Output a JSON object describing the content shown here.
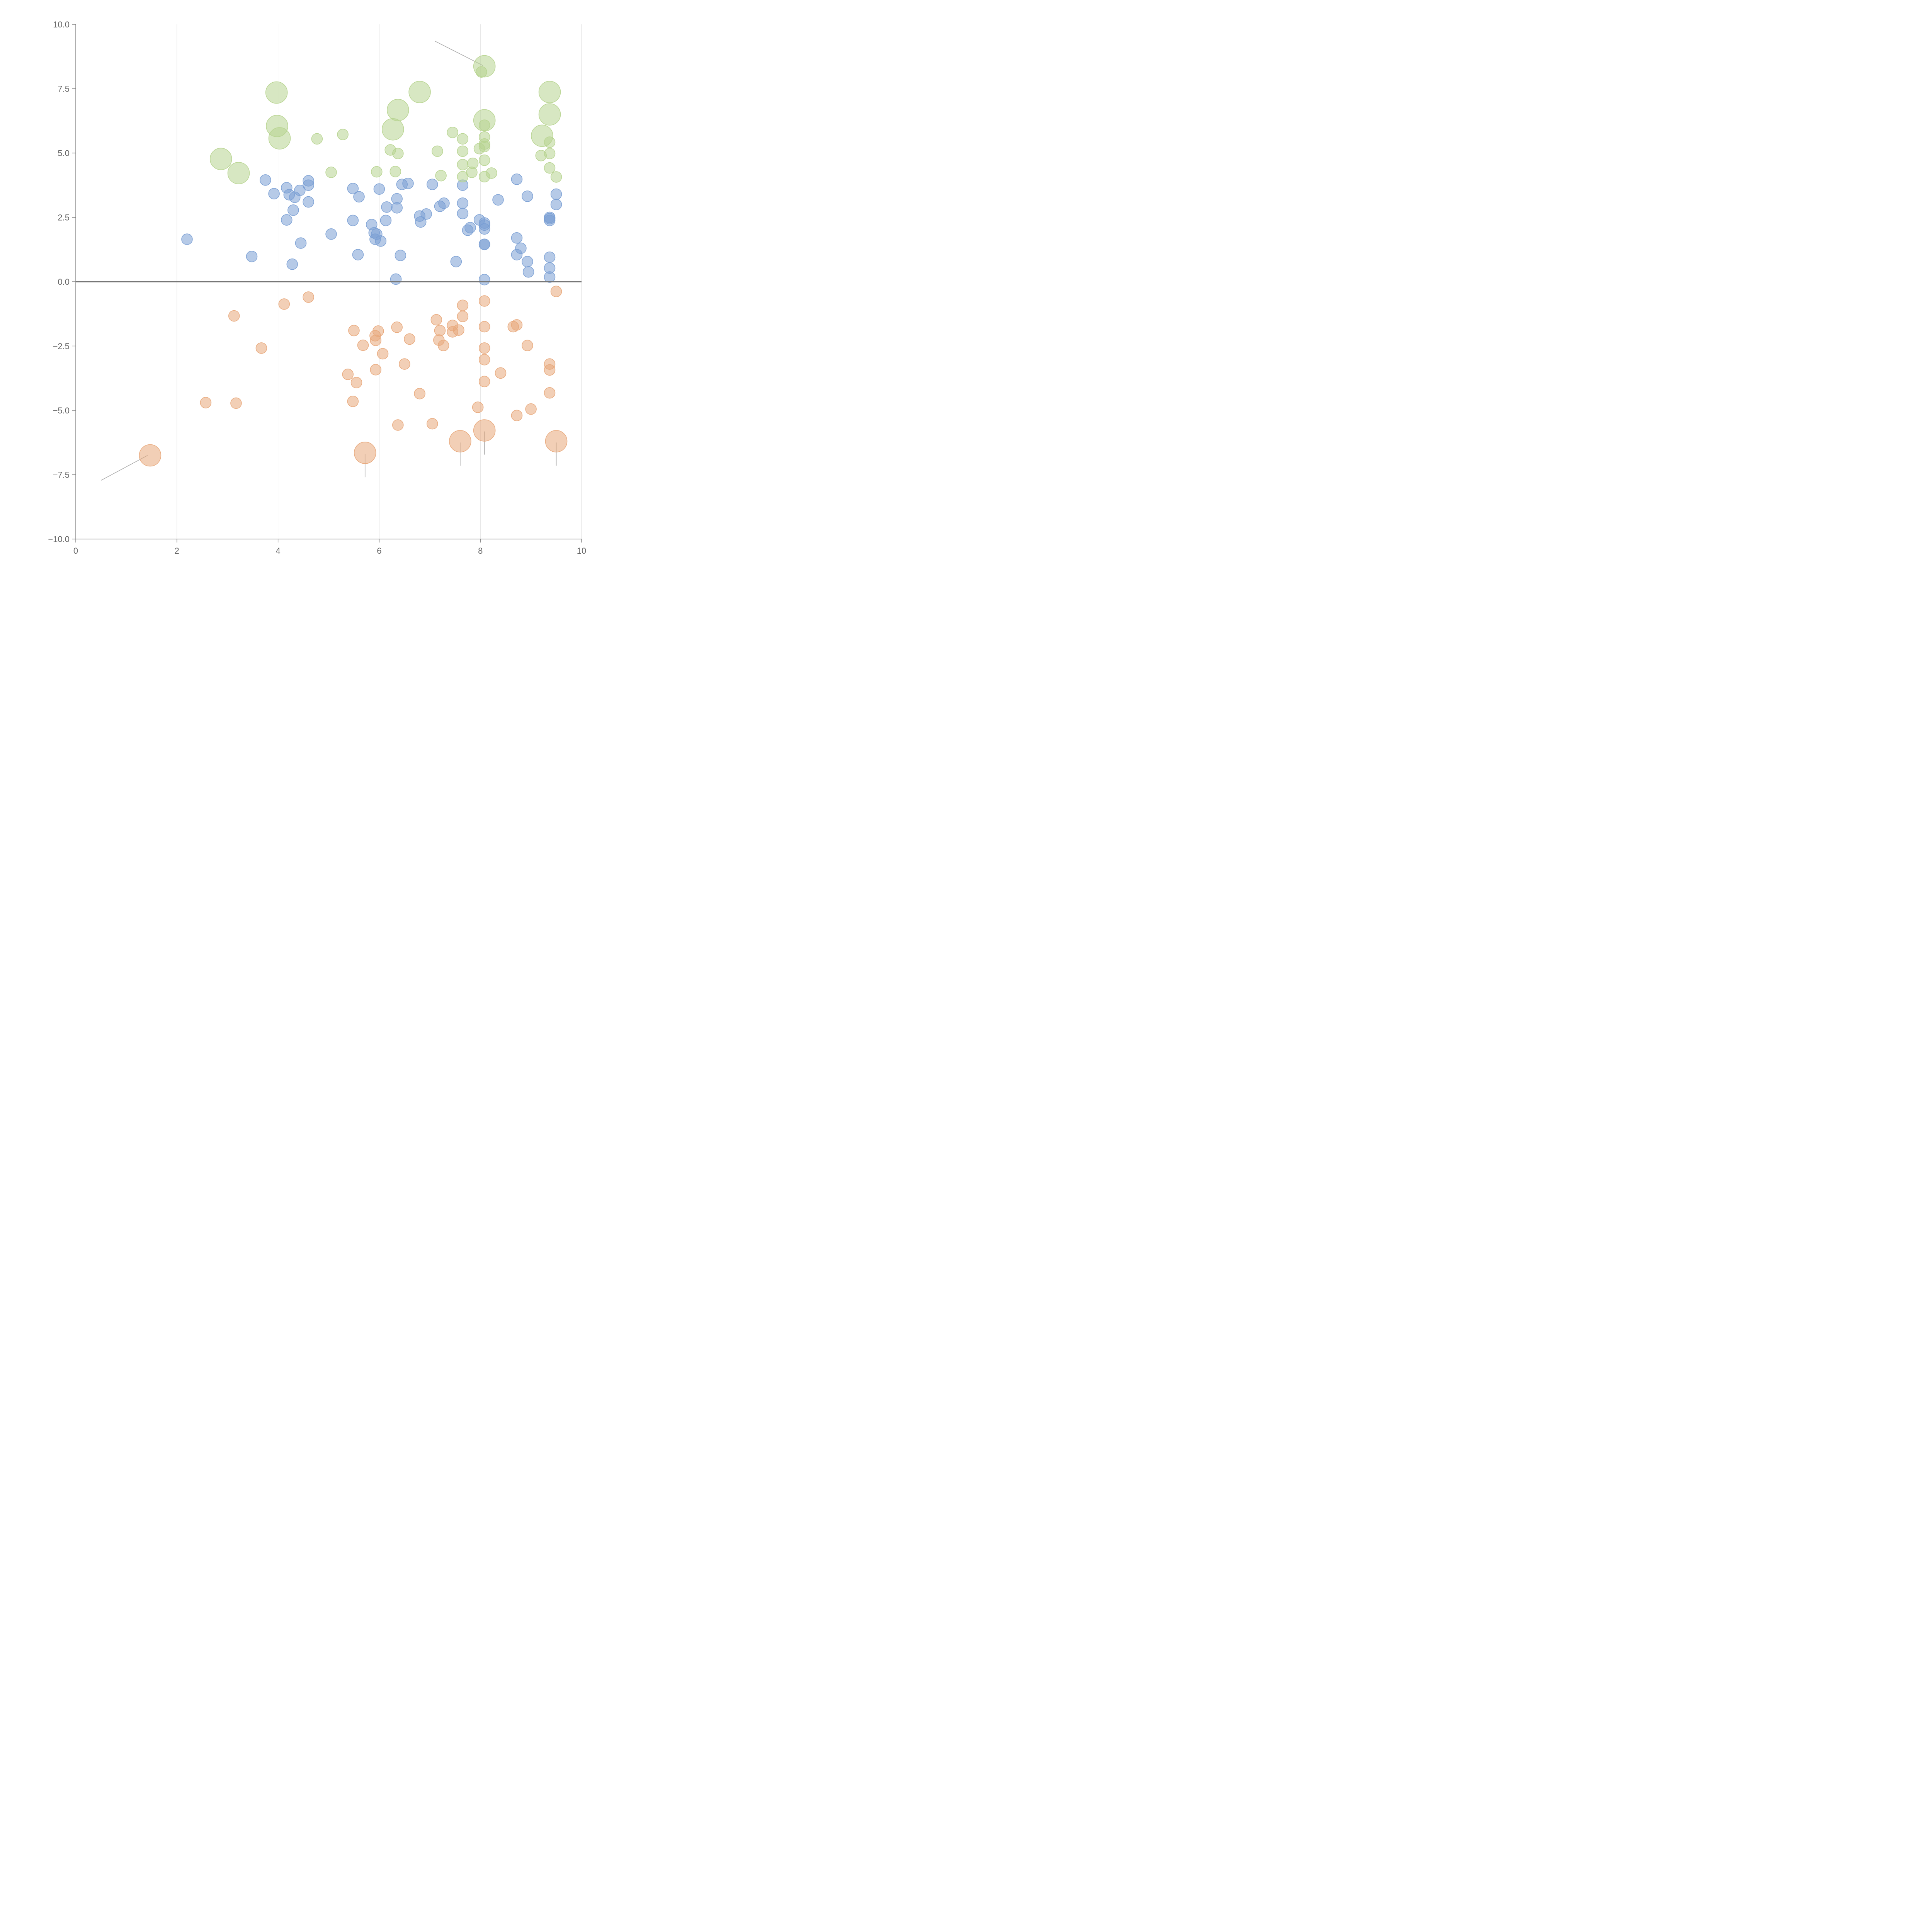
{
  "chart_data": {
    "type": "scatter",
    "title": "",
    "xlabel": "",
    "ylabel": "",
    "xlim": [
      0,
      10
    ],
    "ylim": [
      -10,
      10
    ],
    "grid": "vertical",
    "legend": "none",
    "x_ticks": [
      0,
      2,
      4,
      6,
      8,
      10
    ],
    "x_tick_labels": [
      "0",
      "2",
      "4",
      "6",
      "8",
      "10"
    ],
    "y_ticks": [
      10,
      7.5,
      5,
      2.5,
      0,
      -2.5,
      -5,
      -7.5,
      -10
    ],
    "y_tick_labels": [
      "10.0",
      "7.5",
      "5.0",
      "2.5",
      "0.0",
      "−2.5",
      "−5.0",
      "−7.5",
      "−10.0"
    ],
    "series": [
      {
        "name": "blue",
        "color": "#7a9fd4",
        "points": [
          [
            2.2,
            1.65
          ],
          [
            3.48,
            0.98
          ],
          [
            3.75,
            3.95
          ],
          [
            3.92,
            3.42
          ],
          [
            4.17,
            3.65
          ],
          [
            4.22,
            3.38
          ],
          [
            4.17,
            2.4
          ],
          [
            4.3,
            2.78
          ],
          [
            4.33,
            3.28
          ],
          [
            4.43,
            3.55
          ],
          [
            4.6,
            3.92
          ],
          [
            4.6,
            3.75
          ],
          [
            4.6,
            3.1
          ],
          [
            4.45,
            1.5
          ],
          [
            4.28,
            0.68
          ],
          [
            5.05,
            1.85
          ],
          [
            5.48,
            3.62
          ],
          [
            5.6,
            3.3
          ],
          [
            5.48,
            2.38
          ],
          [
            5.58,
            1.05
          ],
          [
            5.85,
            2.22
          ],
          [
            5.9,
            1.9
          ],
          [
            5.95,
            1.85
          ],
          [
            5.92,
            1.65
          ],
          [
            6.03,
            1.58
          ],
          [
            6.0,
            3.6
          ],
          [
            6.15,
            2.9
          ],
          [
            6.13,
            2.38
          ],
          [
            6.35,
            3.22
          ],
          [
            6.35,
            2.87
          ],
          [
            6.45,
            3.78
          ],
          [
            6.57,
            3.82
          ],
          [
            6.42,
            1.02
          ],
          [
            6.33,
            0.1
          ],
          [
            6.8,
            2.55
          ],
          [
            6.82,
            2.32
          ],
          [
            6.93,
            2.63
          ],
          [
            7.05,
            3.78
          ],
          [
            7.2,
            2.93
          ],
          [
            7.28,
            3.05
          ],
          [
            7.52,
            0.78
          ],
          [
            7.65,
            3.75
          ],
          [
            7.65,
            3.05
          ],
          [
            7.65,
            2.65
          ],
          [
            7.75,
            2.0
          ],
          [
            7.8,
            2.1
          ],
          [
            7.98,
            2.4
          ],
          [
            8.08,
            2.28
          ],
          [
            8.08,
            2.2
          ],
          [
            8.08,
            2.05
          ],
          [
            8.08,
            1.45
          ],
          [
            8.08,
            1.45
          ],
          [
            8.08,
            0.08
          ],
          [
            8.35,
            3.18
          ],
          [
            8.72,
            3.98
          ],
          [
            8.72,
            1.7
          ],
          [
            8.72,
            1.05
          ],
          [
            8.8,
            1.3
          ],
          [
            8.93,
            3.32
          ],
          [
            8.93,
            0.78
          ],
          [
            8.95,
            0.38
          ],
          [
            9.37,
            2.5
          ],
          [
            9.37,
            2.45
          ],
          [
            9.37,
            2.38
          ],
          [
            9.37,
            0.95
          ],
          [
            9.37,
            0.53
          ],
          [
            9.37,
            0.18
          ],
          [
            9.5,
            3.4
          ],
          [
            9.5,
            3.0
          ]
        ]
      },
      {
        "name": "orange",
        "color": "#e8a87a",
        "points": [
          [
            1.47,
            -6.75
          ],
          [
            2.57,
            -4.7
          ],
          [
            3.13,
            -1.33
          ],
          [
            3.17,
            -4.72
          ],
          [
            3.67,
            -2.58
          ],
          [
            4.12,
            -0.87
          ],
          [
            4.6,
            -0.6
          ],
          [
            5.38,
            -3.6
          ],
          [
            5.5,
            -1.9
          ],
          [
            5.48,
            -4.65
          ],
          [
            5.55,
            -3.92
          ],
          [
            5.68,
            -2.47
          ],
          [
            5.72,
            -6.65
          ],
          [
            5.92,
            -2.1
          ],
          [
            5.93,
            -2.28
          ],
          [
            5.98,
            -1.92
          ],
          [
            5.93,
            -3.42
          ],
          [
            6.07,
            -2.8
          ],
          [
            6.35,
            -1.77
          ],
          [
            6.37,
            -5.57
          ],
          [
            6.5,
            -3.2
          ],
          [
            6.6,
            -2.23
          ],
          [
            6.8,
            -4.35
          ],
          [
            7.05,
            -5.52
          ],
          [
            7.13,
            -1.48
          ],
          [
            7.2,
            -1.9
          ],
          [
            7.18,
            -2.27
          ],
          [
            7.27,
            -2.48
          ],
          [
            7.45,
            -1.7
          ],
          [
            7.45,
            -1.95
          ],
          [
            7.57,
            -1.88
          ],
          [
            7.6,
            -6.2
          ],
          [
            7.65,
            -0.92
          ],
          [
            7.65,
            -1.35
          ],
          [
            7.95,
            -4.88
          ],
          [
            8.08,
            -5.78
          ],
          [
            8.08,
            -0.75
          ],
          [
            8.08,
            -1.75
          ],
          [
            8.08,
            -2.58
          ],
          [
            8.08,
            -3.03
          ],
          [
            8.08,
            -3.88
          ],
          [
            8.4,
            -3.55
          ],
          [
            8.65,
            -1.75
          ],
          [
            8.72,
            -1.68
          ],
          [
            8.72,
            -5.2
          ],
          [
            8.93,
            -2.48
          ],
          [
            9.0,
            -4.95
          ],
          [
            9.37,
            -3.2
          ],
          [
            9.37,
            -3.43
          ],
          [
            9.37,
            -4.32
          ],
          [
            9.5,
            -0.38
          ],
          [
            9.5,
            -6.2
          ]
        ]
      },
      {
        "name": "green",
        "color": "#b7d48f",
        "points": [
          [
            2.87,
            4.77
          ],
          [
            3.22,
            4.22
          ],
          [
            3.97,
            7.35
          ],
          [
            3.98,
            6.05
          ],
          [
            4.03,
            5.57
          ],
          [
            4.77,
            5.55
          ],
          [
            5.28,
            5.72
          ],
          [
            5.05,
            4.25
          ],
          [
            5.95,
            4.27
          ],
          [
            6.22,
            5.12
          ],
          [
            6.27,
            5.92
          ],
          [
            6.32,
            4.28
          ],
          [
            6.37,
            6.67
          ],
          [
            6.37,
            4.98
          ],
          [
            6.8,
            7.37
          ],
          [
            7.15,
            5.07
          ],
          [
            7.22,
            4.12
          ],
          [
            7.45,
            5.8
          ],
          [
            7.65,
            5.55
          ],
          [
            7.65,
            5.07
          ],
          [
            7.65,
            4.55
          ],
          [
            7.65,
            4.08
          ],
          [
            7.85,
            4.6
          ],
          [
            7.83,
            4.25
          ],
          [
            7.98,
            5.17
          ],
          [
            8.02,
            8.15
          ],
          [
            8.08,
            8.37
          ],
          [
            8.08,
            6.27
          ],
          [
            8.08,
            6.08
          ],
          [
            8.08,
            5.62
          ],
          [
            8.08,
            5.35
          ],
          [
            8.08,
            5.25
          ],
          [
            8.08,
            4.72
          ],
          [
            8.08,
            4.08
          ],
          [
            8.22,
            4.22
          ],
          [
            9.2,
            4.9
          ],
          [
            9.22,
            5.67
          ],
          [
            9.37,
            7.37
          ],
          [
            9.37,
            6.5
          ],
          [
            9.37,
            5.42
          ],
          [
            9.37,
            4.98
          ],
          [
            9.37,
            4.42
          ],
          [
            9.5,
            4.07
          ]
        ]
      }
    ],
    "large_bubbles": [
      {
        "series": "orange",
        "x": 1.47,
        "y": -6.75
      },
      {
        "series": "orange",
        "x": 5.72,
        "y": -6.65
      },
      {
        "series": "orange",
        "x": 7.6,
        "y": -6.2
      },
      {
        "series": "orange",
        "x": 8.08,
        "y": -5.78
      },
      {
        "series": "orange",
        "x": 9.5,
        "y": -6.2
      },
      {
        "series": "green",
        "x": 2.87,
        "y": 4.77
      },
      {
        "series": "green",
        "x": 3.22,
        "y": 4.22
      },
      {
        "series": "green",
        "x": 3.97,
        "y": 7.35
      },
      {
        "series": "green",
        "x": 3.98,
        "y": 6.05
      },
      {
        "series": "green",
        "x": 4.03,
        "y": 5.57
      },
      {
        "series": "green",
        "x": 6.27,
        "y": 5.92
      },
      {
        "series": "green",
        "x": 6.37,
        "y": 6.67
      },
      {
        "series": "green",
        "x": 6.8,
        "y": 7.37
      },
      {
        "series": "green",
        "x": 8.08,
        "y": 8.37
      },
      {
        "series": "green",
        "x": 8.08,
        "y": 6.27
      },
      {
        "series": "green",
        "x": 9.22,
        "y": 5.67
      },
      {
        "series": "green",
        "x": 9.37,
        "y": 7.37
      },
      {
        "series": "green",
        "x": 9.37,
        "y": 6.5
      }
    ],
    "leader_lines": [
      {
        "x1": 1.42,
        "y1": -6.75,
        "x2": 0.5,
        "y2": -7.72
      },
      {
        "x1": 5.72,
        "y1": -6.7,
        "x2": 5.72,
        "y2": -7.6
      },
      {
        "x1": 7.6,
        "y1": -6.25,
        "x2": 7.6,
        "y2": -7.15
      },
      {
        "x1": 8.08,
        "y1": -5.82,
        "x2": 8.08,
        "y2": -6.72
      },
      {
        "x1": 9.5,
        "y1": -6.25,
        "x2": 9.5,
        "y2": -7.15
      },
      {
        "x1": 8.05,
        "y1": 8.4,
        "x2": 7.1,
        "y2": 9.35
      }
    ]
  }
}
